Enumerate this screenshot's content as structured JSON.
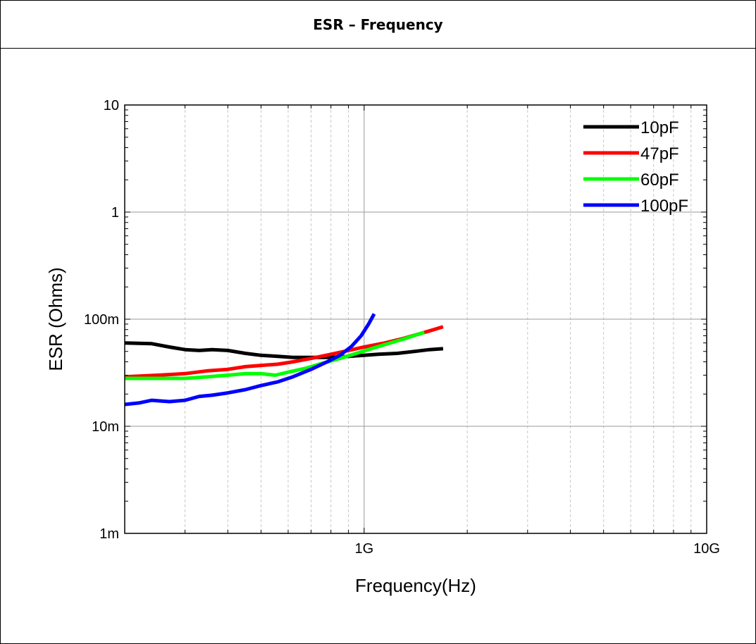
{
  "title": "ESR – Frequency",
  "chart_data": {
    "type": "line",
    "title": "ESR – Frequency",
    "xlabel": "Frequency(Hz)",
    "ylabel": "ESR (Ohms)",
    "x_scale": "log",
    "y_scale": "log",
    "xlim": [
      200000000,
      10000000000
    ],
    "ylim": [
      0.001,
      10
    ],
    "x_ticks": [
      {
        "value": 1000000000,
        "label": "1G"
      },
      {
        "value": 10000000000,
        "label": "10G"
      }
    ],
    "y_ticks": [
      {
        "value": 0.001,
        "label": "1m"
      },
      {
        "value": 0.01,
        "label": "10m"
      },
      {
        "value": 0.1,
        "label": "100m"
      },
      {
        "value": 1,
        "label": "1"
      },
      {
        "value": 10,
        "label": "10"
      }
    ],
    "grid": true,
    "legend_position": "top-right",
    "series": [
      {
        "name": "10pF",
        "color": "#000000",
        "x": [
          200000000,
          240000000,
          270000000,
          300000000,
          330000000,
          360000000,
          400000000,
          450000000,
          500000000,
          560000000,
          620000000,
          700000000,
          800000000,
          900000000,
          1000000000,
          1100000000,
          1250000000,
          1400000000,
          1550000000,
          1700000000
        ],
        "y": [
          0.06,
          0.059,
          0.055,
          0.052,
          0.051,
          0.052,
          0.051,
          0.048,
          0.046,
          0.045,
          0.044,
          0.044,
          0.044,
          0.045,
          0.046,
          0.047,
          0.048,
          0.05,
          0.052,
          0.053
        ]
      },
      {
        "name": "47pF",
        "color": "#ff0000",
        "x": [
          200000000,
          250000000,
          300000000,
          350000000,
          400000000,
          450000000,
          500000000,
          560000000,
          620000000,
          700000000,
          800000000,
          900000000,
          1000000000,
          1150000000,
          1300000000,
          1450000000,
          1600000000,
          1700000000
        ],
        "y": [
          0.029,
          0.03,
          0.031,
          0.033,
          0.034,
          0.036,
          0.037,
          0.038,
          0.04,
          0.043,
          0.047,
          0.051,
          0.055,
          0.06,
          0.066,
          0.073,
          0.08,
          0.085
        ]
      },
      {
        "name": "60pF",
        "color": "#00ff00",
        "x": [
          200000000,
          250000000,
          300000000,
          350000000,
          400000000,
          450000000,
          500000000,
          550000000,
          600000000,
          680000000,
          760000000,
          850000000,
          950000000,
          1050000000,
          1150000000,
          1300000000,
          1450000000,
          1500000000
        ],
        "y": [
          0.028,
          0.028,
          0.028,
          0.029,
          0.03,
          0.031,
          0.031,
          0.03,
          0.032,
          0.035,
          0.039,
          0.043,
          0.048,
          0.053,
          0.058,
          0.065,
          0.073,
          0.075
        ]
      },
      {
        "name": "100pF",
        "color": "#0000ff",
        "x": [
          200000000,
          220000000,
          240000000,
          270000000,
          300000000,
          330000000,
          360000000,
          400000000,
          450000000,
          500000000,
          560000000,
          620000000,
          700000000,
          780000000,
          850000000,
          920000000,
          980000000,
          1030000000,
          1070000000
        ],
        "y": [
          0.016,
          0.0165,
          0.0175,
          0.017,
          0.0175,
          0.019,
          0.0195,
          0.0205,
          0.022,
          0.024,
          0.026,
          0.029,
          0.034,
          0.04,
          0.046,
          0.056,
          0.07,
          0.09,
          0.112
        ]
      }
    ]
  }
}
